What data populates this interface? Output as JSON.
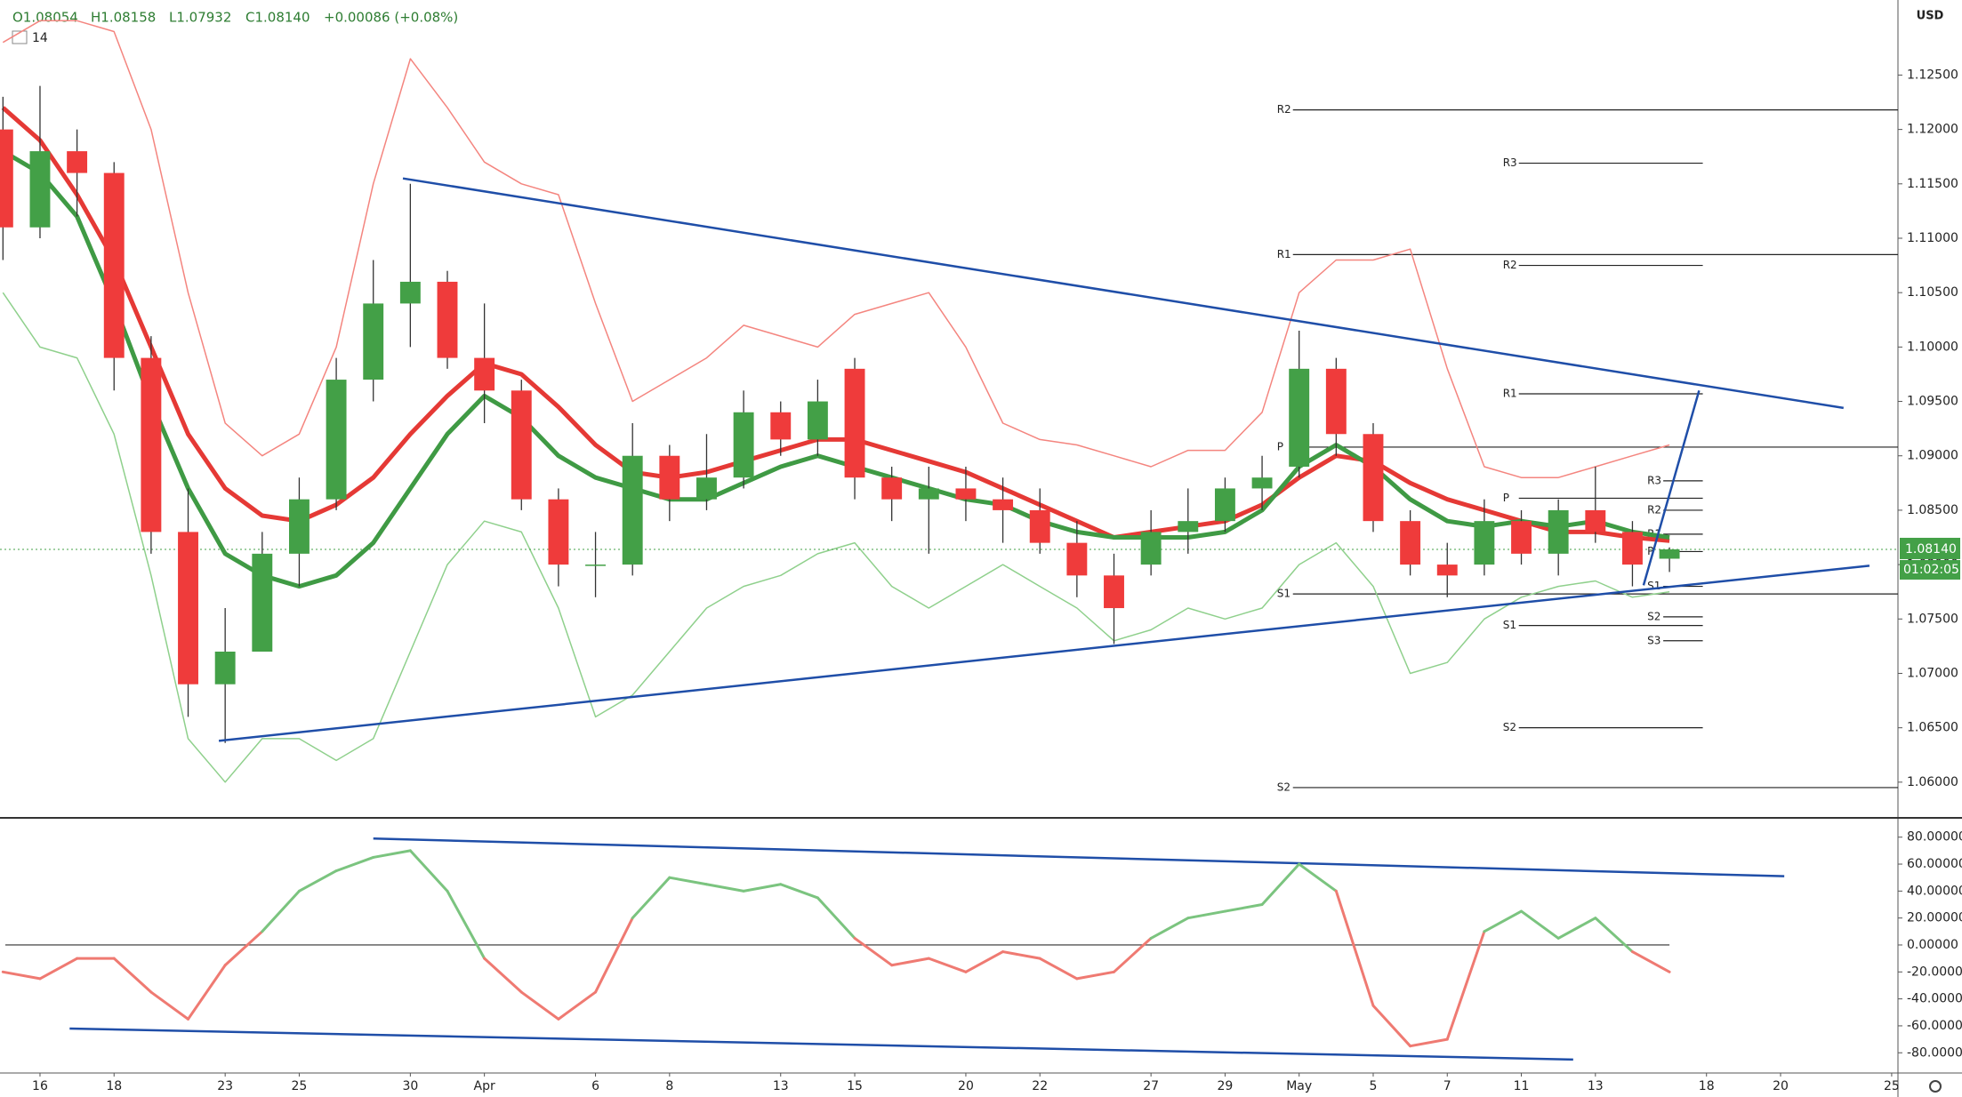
{
  "chart_data": {
    "type": "candlestick",
    "header": {
      "open": "O1.08054",
      "high": "H1.08158",
      "low": "L1.07932",
      "close": "C1.08140",
      "change": "+0.00086 (+0.08%)",
      "indicator": "14"
    },
    "currency": "USD",
    "x": [
      -1,
      0,
      1,
      2,
      3,
      4,
      5,
      6,
      7,
      8,
      9,
      10,
      11,
      12,
      13,
      14,
      15,
      16,
      17,
      18,
      19,
      20,
      21,
      22,
      23,
      24,
      25,
      26,
      27,
      28,
      29,
      30,
      31,
      32,
      33,
      34,
      35,
      36,
      37,
      38,
      39,
      40,
      41,
      42,
      43,
      44
    ],
    "open": [
      1.12,
      1.111,
      1.118,
      1.116,
      1.099,
      1.083,
      1.069,
      1.072,
      1.081,
      1.086,
      1.097,
      1.104,
      1.106,
      1.099,
      1.096,
      1.086,
      1.08,
      1.08,
      1.09,
      1.086,
      1.088,
      1.094,
      1.0915,
      1.098,
      1.088,
      1.086,
      1.087,
      1.086,
      1.085,
      1.082,
      1.079,
      1.08,
      1.083,
      1.084,
      1.087,
      1.089,
      1.098,
      1.092,
      1.084,
      1.08,
      1.08,
      1.084,
      1.081,
      1.085,
      1.083,
      1.08054
    ],
    "high": [
      1.123,
      1.124,
      1.12,
      1.117,
      1.101,
      1.087,
      1.076,
      1.083,
      1.088,
      1.099,
      1.108,
      1.115,
      1.107,
      1.104,
      1.097,
      1.087,
      1.083,
      1.093,
      1.091,
      1.092,
      1.096,
      1.095,
      1.097,
      1.099,
      1.089,
      1.089,
      1.089,
      1.088,
      1.087,
      1.084,
      1.081,
      1.085,
      1.087,
      1.088,
      1.09,
      1.1015,
      1.099,
      1.093,
      1.085,
      1.082,
      1.086,
      1.085,
      1.086,
      1.089,
      1.084,
      1.08158
    ],
    "low": [
      1.108,
      1.11,
      1.112,
      1.096,
      1.081,
      1.066,
      1.0636,
      1.072,
      1.078,
      1.085,
      1.095,
      1.1,
      1.098,
      1.093,
      1.085,
      1.078,
      1.077,
      1.079,
      1.084,
      1.085,
      1.087,
      1.09,
      1.09,
      1.086,
      1.084,
      1.081,
      1.084,
      1.082,
      1.081,
      1.077,
      1.0727,
      1.079,
      1.081,
      1.083,
      1.085,
      1.088,
      1.09,
      1.083,
      1.079,
      1.077,
      1.079,
      1.08,
      1.079,
      1.082,
      1.078,
      1.07932
    ],
    "close": [
      1.111,
      1.118,
      1.116,
      1.099,
      1.083,
      1.069,
      1.072,
      1.081,
      1.086,
      1.097,
      1.104,
      1.106,
      1.099,
      1.096,
      1.086,
      1.08,
      1.08,
      1.09,
      1.086,
      1.088,
      1.094,
      1.0915,
      1.095,
      1.088,
      1.086,
      1.087,
      1.086,
      1.085,
      1.082,
      1.079,
      1.076,
      1.083,
      1.084,
      1.087,
      1.088,
      1.098,
      1.092,
      1.084,
      1.08,
      1.079,
      1.084,
      1.081,
      1.085,
      1.083,
      1.08,
      1.0814
    ],
    "up_color": "#43a047",
    "down_color": "#ef3b3b",
    "overlays": [
      {
        "color": "#f4857f",
        "width": 1.5,
        "values": [
          1.128,
          1.13,
          1.13,
          1.129,
          1.12,
          1.105,
          1.093,
          1.09,
          1.092,
          1.1,
          1.115,
          1.1265,
          1.122,
          1.117,
          1.115,
          1.114,
          1.104,
          1.095,
          1.097,
          1.099,
          1.102,
          1.101,
          1.1,
          1.103,
          1.104,
          1.105,
          1.1,
          1.093,
          1.0915,
          1.091,
          1.09,
          1.089,
          1.0905,
          1.0905,
          1.094,
          1.105,
          1.108,
          1.108,
          1.109,
          1.098,
          1.089,
          1.088,
          1.088,
          1.089,
          1.09,
          1.091
        ]
      },
      {
        "color": "#8fd08c",
        "width": 1.5,
        "values": [
          1.105,
          1.1,
          1.099,
          1.092,
          1.079,
          1.064,
          1.06,
          1.064,
          1.064,
          1.062,
          1.064,
          1.072,
          1.08,
          1.084,
          1.083,
          1.076,
          1.066,
          1.068,
          1.072,
          1.076,
          1.078,
          1.079,
          1.081,
          1.082,
          1.078,
          1.076,
          1.078,
          1.08,
          1.078,
          1.076,
          1.073,
          1.074,
          1.076,
          1.075,
          1.076,
          1.08,
          1.082,
          1.078,
          1.07,
          1.071,
          1.075,
          1.077,
          1.078,
          1.0785,
          1.077,
          1.0775
        ]
      },
      {
        "color": "#e53935",
        "width": 5,
        "values": [
          1.122,
          1.119,
          1.114,
          1.108,
          1.1,
          1.092,
          1.087,
          1.0845,
          1.084,
          1.0855,
          1.088,
          1.092,
          1.0955,
          1.0985,
          1.0975,
          1.0945,
          1.091,
          1.0885,
          1.088,
          1.0885,
          1.0895,
          1.0905,
          1.0915,
          1.0915,
          1.0905,
          1.0895,
          1.0885,
          1.087,
          1.0855,
          1.084,
          1.0825,
          1.083,
          1.0835,
          1.084,
          1.0855,
          1.088,
          1.09,
          1.0895,
          1.0875,
          1.086,
          1.085,
          1.084,
          1.083,
          1.083,
          1.0825,
          1.0822
        ]
      },
      {
        "color": "#3f9a44",
        "width": 5,
        "values": [
          1.118,
          1.116,
          1.112,
          1.104,
          1.095,
          1.087,
          1.081,
          1.079,
          1.078,
          1.079,
          1.082,
          1.087,
          1.092,
          1.0955,
          1.0935,
          1.09,
          1.088,
          1.087,
          1.086,
          1.086,
          1.0875,
          1.089,
          1.09,
          1.089,
          1.088,
          1.087,
          1.086,
          1.0855,
          1.084,
          1.083,
          1.0825,
          1.0825,
          1.0825,
          1.083,
          1.085,
          1.089,
          1.091,
          1.089,
          1.086,
          1.084,
          1.0835,
          1.084,
          1.0835,
          1.084,
          1.083,
          1.0825
        ]
      }
    ],
    "oscillator": {
      "values": [
        -20,
        -25,
        -10,
        -10,
        -35,
        -55,
        -15,
        10,
        40,
        55,
        65,
        70,
        40,
        -10,
        -35,
        -55,
        -35,
        20,
        50,
        45,
        40,
        45,
        35,
        5,
        -15,
        -10,
        -20,
        -5,
        -10,
        -25,
        -20,
        5,
        20,
        25,
        30,
        60,
        40,
        -45,
        -75,
        -70,
        10,
        25,
        5,
        20,
        -5,
        -20
      ],
      "positive_color": "#7bc47f",
      "negative_color": "#ef7a72"
    },
    "price_trendlines": [
      {
        "x": [
          9.8,
          48.7
        ],
        "y": [
          1.1155,
          1.0944
        ]
      },
      {
        "x": [
          4.83,
          49.4
        ],
        "y": [
          1.0638,
          1.0799
        ]
      },
      {
        "x": [
          43.3,
          44.8
        ],
        "y": [
          1.0781,
          1.096
        ]
      }
    ],
    "oscillator_trendlines": [
      {
        "x": [
          9.0,
          47.1
        ],
        "y": [
          79,
          51
        ]
      },
      {
        "x": [
          0.8,
          41.4
        ],
        "y": [
          -62,
          -85
        ]
      }
    ],
    "trendline_color": "#1f4ea8",
    "pivots": [
      {
        "label": "R2",
        "value": 1.1218,
        "x": [
          33.4,
          50.17
        ]
      },
      {
        "label": "R1",
        "value": 1.1085,
        "x": [
          33.4,
          50.17
        ]
      },
      {
        "label": "P",
        "value": 1.0908,
        "x": [
          33.4,
          50.17
        ]
      },
      {
        "label": "S1",
        "value": 1.0773,
        "x": [
          33.4,
          50.17
        ]
      },
      {
        "label": "S2",
        "value": 1.0595,
        "x": [
          33.4,
          50.17
        ]
      },
      {
        "label": "R3",
        "value": 1.1169,
        "x": [
          39.5,
          44.9
        ]
      },
      {
        "label": "R2",
        "value": 1.1075,
        "x": [
          39.5,
          44.9
        ]
      },
      {
        "label": "R1",
        "value": 1.0957,
        "x": [
          39.5,
          44.9
        ]
      },
      {
        "label": "P",
        "value": 1.0861,
        "x": [
          39.5,
          44.9
        ]
      },
      {
        "label": "S1",
        "value": 1.0744,
        "x": [
          39.5,
          44.9
        ]
      },
      {
        "label": "S2",
        "value": 1.065,
        "x": [
          39.5,
          44.9
        ]
      },
      {
        "label": "R3",
        "value": 1.0877,
        "x": [
          43.4,
          44.9
        ]
      },
      {
        "label": "R2",
        "value": 1.085,
        "x": [
          43.4,
          44.9
        ]
      },
      {
        "label": "R1",
        "value": 1.0828,
        "x": [
          43.4,
          44.9
        ]
      },
      {
        "label": "P",
        "value": 1.0812,
        "x": [
          43.4,
          44.9
        ]
      },
      {
        "label": "S1",
        "value": 1.078,
        "x": [
          43.4,
          44.9
        ]
      },
      {
        "label": "S2",
        "value": 1.0752,
        "x": [
          43.4,
          44.9
        ]
      },
      {
        "label": "S3",
        "value": 1.073,
        "x": [
          43.4,
          44.9
        ]
      }
    ],
    "price_label": "1.08140",
    "countdown": "01:02:05",
    "xlim": [
      -1.08,
      50.17
    ],
    "xticks": [
      {
        "value": 0,
        "label": "16"
      },
      {
        "value": 2,
        "label": "18"
      },
      {
        "value": 5,
        "label": "23"
      },
      {
        "value": 7,
        "label": "25"
      },
      {
        "value": 10,
        "label": "30"
      },
      {
        "value": 12,
        "label": "Apr"
      },
      {
        "value": 15,
        "label": "6"
      },
      {
        "value": 17,
        "label": "8"
      },
      {
        "value": 20,
        "label": "13"
      },
      {
        "value": 22,
        "label": "15"
      },
      {
        "value": 25,
        "label": "20"
      },
      {
        "value": 27,
        "label": "22"
      },
      {
        "value": 30,
        "label": "27"
      },
      {
        "value": 32,
        "label": "29"
      },
      {
        "value": 34,
        "label": "May"
      },
      {
        "value": 36,
        "label": "5"
      },
      {
        "value": 38,
        "label": "7"
      },
      {
        "value": 40,
        "label": "11"
      },
      {
        "value": 42,
        "label": "13"
      },
      {
        "value": 45,
        "label": "18"
      },
      {
        "value": 47,
        "label": "20"
      },
      {
        "value": 50,
        "label": "25"
      }
    ],
    "ylim": [
      1.0568,
      1.1319
    ],
    "yticks": [
      {
        "value": 1.06,
        "label": "1.06000"
      },
      {
        "value": 1.065,
        "label": "1.06500"
      },
      {
        "value": 1.07,
        "label": "1.07000"
      },
      {
        "value": 1.075,
        "label": "1.07500"
      },
      {
        "value": 1.08,
        "label": "1.08000"
      },
      {
        "value": 1.085,
        "label": "1.08500"
      },
      {
        "value": 1.09,
        "label": "1.09000"
      },
      {
        "value": 1.095,
        "label": "1.09500"
      },
      {
        "value": 1.1,
        "label": "1.10000"
      },
      {
        "value": 1.105,
        "label": "1.10500"
      },
      {
        "value": 1.11,
        "label": "1.11000"
      },
      {
        "value": 1.115,
        "label": "1.11500"
      },
      {
        "value": 1.12,
        "label": "1.12000"
      },
      {
        "value": 1.125,
        "label": "1.12500"
      }
    ],
    "y2lim": [
      -95,
      93
    ],
    "y2ticks": [
      {
        "value": -80,
        "label": "-80.00000"
      },
      {
        "value": -60,
        "label": "-60.00000"
      },
      {
        "value": -40,
        "label": "-40.00000"
      },
      {
        "value": -20,
        "label": "-20.00000"
      },
      {
        "value": 0,
        "label": "0.00000"
      },
      {
        "value": 20,
        "label": "20.00000"
      },
      {
        "value": 40,
        "label": "40.00000"
      },
      {
        "value": 60,
        "label": "60.00000"
      },
      {
        "value": 80,
        "label": "80.00000"
      }
    ]
  }
}
